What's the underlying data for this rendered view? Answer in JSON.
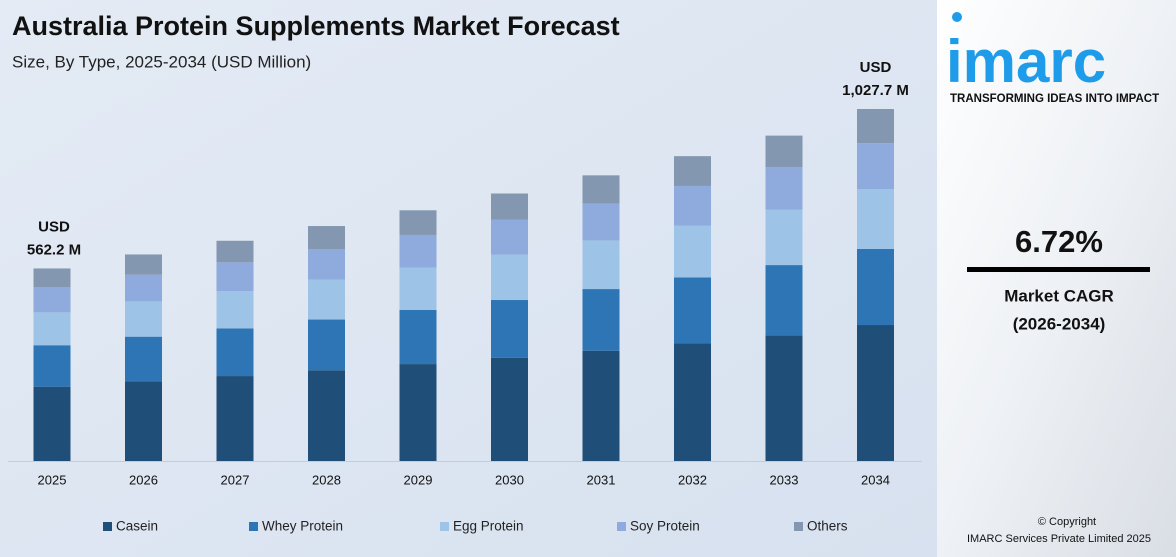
{
  "chart_data": {
    "type": "stacked-bar",
    "title": "Australia Protein Supplements Market Forecast",
    "subtitle": "Size, By Type, 2025-2034 (USD Million)",
    "categories": [
      "2025",
      "2026",
      "2027",
      "2028",
      "2029",
      "2030",
      "2031",
      "2032",
      "2033",
      "2034"
    ],
    "series": [
      {
        "name": "Casein",
        "color": "#1f4e79",
        "values": [
          217,
          233,
          248,
          265,
          283,
          301,
          322,
          344,
          367,
          397
        ]
      },
      {
        "name": "Whey Protein",
        "color": "#2e75b6",
        "values": [
          121,
          130,
          139,
          148,
          158,
          169,
          180,
          192,
          205,
          222
        ]
      },
      {
        "name": "Egg Protein",
        "color": "#9dc3e6",
        "values": [
          96,
          103,
          109,
          117,
          124,
          133,
          142,
          151,
          162,
          175
        ]
      },
      {
        "name": "Soy Protein",
        "color": "#8faadc",
        "values": [
          73,
          78,
          84,
          89,
          95,
          102,
          108,
          116,
          124,
          134
        ]
      },
      {
        "name": "Others",
        "color": "#8497b0",
        "values": [
          55.2,
          59,
          63,
          67,
          72,
          76,
          82,
          87,
          92,
          99.7
        ]
      }
    ],
    "annotations": [
      {
        "x": "2025",
        "value": 562.2,
        "lines": [
          "USD",
          "562.2 M"
        ]
      },
      {
        "x": "2034",
        "value": 1027.7,
        "lines": [
          "USD",
          "1,027.7 M"
        ]
      }
    ],
    "legend": "bottom"
  },
  "sidebar": {
    "logo": "imarc",
    "tagline": "TRANSFORMING IDEAS INTO IMPACT",
    "cagr": "6.72%",
    "cagr_label": "Market CAGR",
    "cagr_period": "(2026-2034)",
    "copyright": "© Copyright",
    "company": "IMARC Services Private Limited 2025"
  }
}
